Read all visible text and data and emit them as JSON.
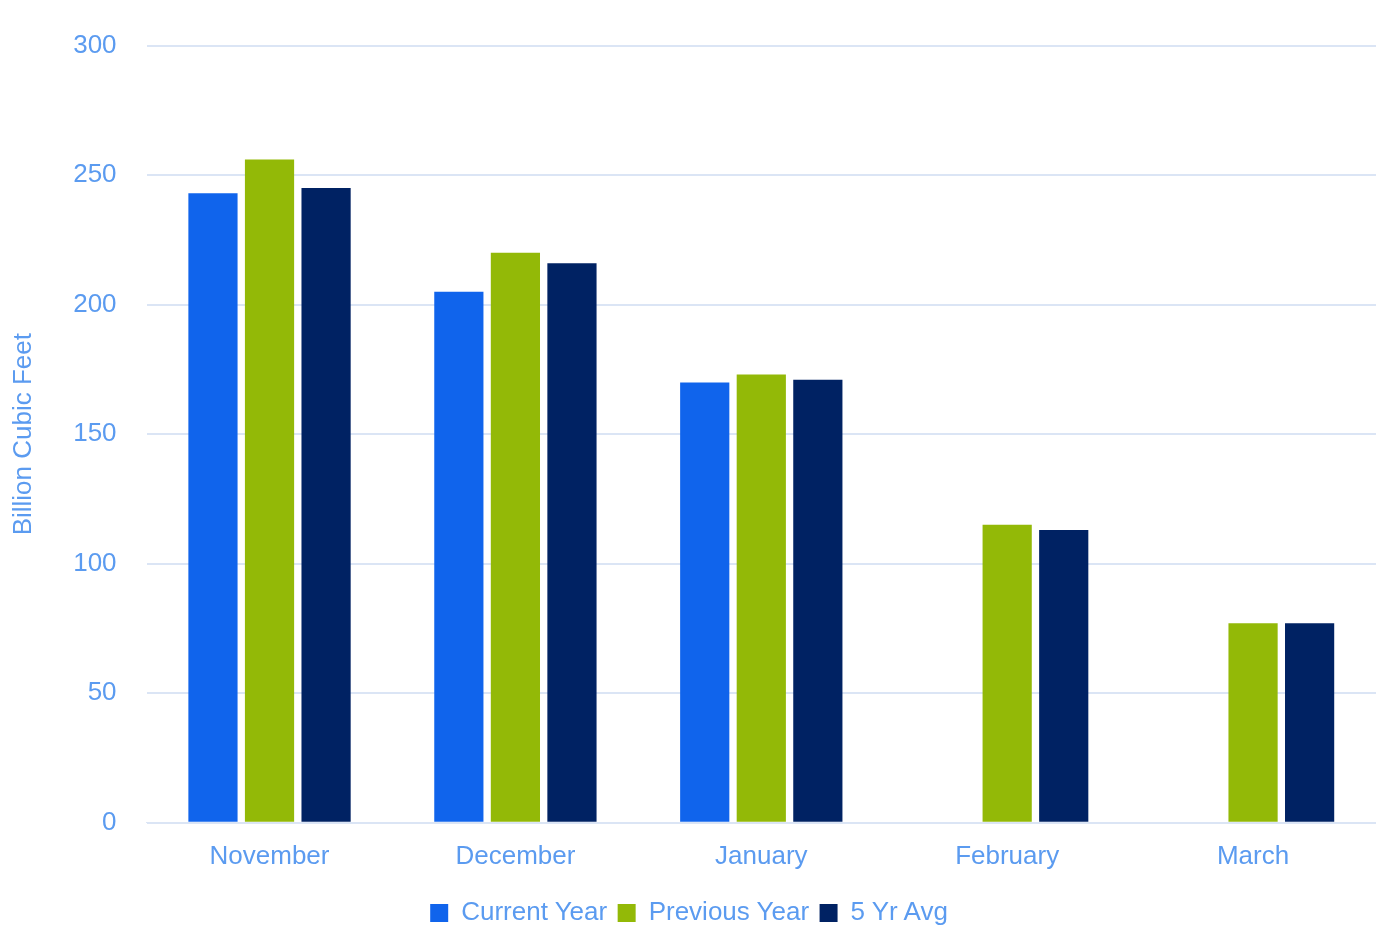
{
  "chart_data": {
    "type": "bar",
    "ylabel": "Billion Cubic Feet",
    "categories": [
      "November",
      "December",
      "January",
      "February",
      "March"
    ],
    "series": [
      {
        "name": "Current Year",
        "color": "#1064ec",
        "values": [
          243,
          205,
          170,
          null,
          null
        ]
      },
      {
        "name": "Previous Year",
        "color": "#93b907",
        "values": [
          256,
          220,
          173,
          115,
          77
        ]
      },
      {
        "name": "5 Yr Avg",
        "color": "#002263",
        "values": [
          245,
          216,
          171,
          113,
          77
        ]
      }
    ],
    "ylim": [
      0,
      300
    ],
    "yticks": [
      0,
      50,
      100,
      150,
      200,
      250,
      300
    ],
    "grid": "y",
    "legend": "bottom"
  }
}
